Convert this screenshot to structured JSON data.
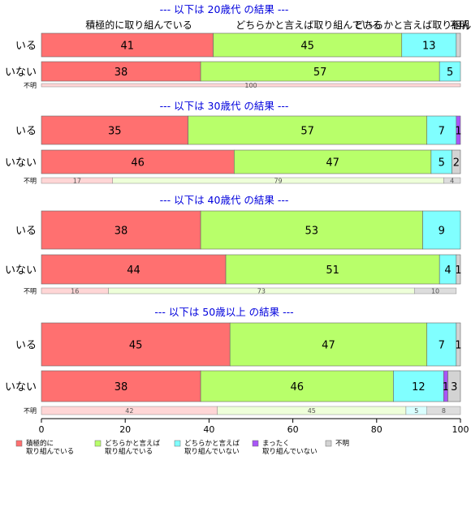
{
  "chart_data": {
    "type": "bar",
    "orientation": "horizontal",
    "stacked": true,
    "xlim": [
      0,
      100
    ],
    "x_ticks": [
      0,
      20,
      40,
      60,
      80,
      100
    ],
    "top_category_labels": [
      "積極的に取り組んでいる",
      "どちらかと言えば取り組んでいる",
      "どちらかと言えば取り組んでいない",
      "不明"
    ],
    "legend": {
      "placement": "bottom",
      "items": [
        {
          "label_lines": [
            "積極的に",
            "取り組んでいる"
          ],
          "color": "#ff7070"
        },
        {
          "label_lines": [
            "どちらかと言えば",
            "取り組んでいる"
          ],
          "color": "#b8ff6a"
        },
        {
          "label_lines": [
            "どちらかと言えば",
            "取り組んでいない"
          ],
          "color": "#80ffff"
        },
        {
          "label_lines": [
            "まったく",
            "取り組んでいない"
          ],
          "color": "#a855f7"
        },
        {
          "label_lines": [
            "不明"
          ],
          "color": "#d3d3d3"
        }
      ]
    },
    "groups": [
      {
        "title": "--- 以下は 20歳代 の結果 ---",
        "rows": [
          {
            "label": "いる",
            "values": [
              41,
              45,
              13,
              0,
              1
            ],
            "labels": [
              "41",
              "45",
              "13",
              "",
              ""
            ]
          },
          {
            "label": "いない",
            "values": [
              38,
              57,
              5,
              0,
              0
            ],
            "labels": [
              "38",
              "57",
              "5",
              "",
              ""
            ]
          }
        ],
        "unknown": {
          "label": "不明",
          "values": [
            100,
            0,
            0,
            0,
            0
          ],
          "labels": [
            "100",
            "",
            "",
            "",
            ""
          ]
        }
      },
      {
        "title": "--- 以下は 30歳代 の結果 ---",
        "rows": [
          {
            "label": "いる",
            "values": [
              35,
              57,
              7,
              1,
              0
            ],
            "labels": [
              "35",
              "57",
              "7",
              "1",
              ""
            ]
          },
          {
            "label": "いない",
            "values": [
              46,
              47,
              5,
              0,
              2
            ],
            "labels": [
              "46",
              "47",
              "5",
              "",
              "2"
            ]
          }
        ],
        "unknown": {
          "label": "不明",
          "values": [
            17,
            79,
            0,
            0,
            4
          ],
          "labels": [
            "17",
            "79",
            "",
            "",
            "4"
          ]
        }
      },
      {
        "title": "--- 以下は 40歳代 の結果 ---",
        "rows": [
          {
            "label": "いる",
            "values": [
              38,
              53,
              9,
              0,
              0
            ],
            "labels": [
              "38",
              "53",
              "9",
              "",
              ""
            ]
          },
          {
            "label": "いない",
            "values": [
              44,
              51,
              4,
              0,
              1
            ],
            "labels": [
              "44",
              "51",
              "4",
              "",
              "1"
            ]
          }
        ],
        "unknown": {
          "label": "不明",
          "values": [
            16,
            73,
            0,
            0,
            10
          ],
          "labels": [
            "16",
            "73",
            "",
            "",
            "10"
          ]
        }
      },
      {
        "title": "--- 以下は 50歳以上 の結果 ---",
        "rows": [
          {
            "label": "いる",
            "values": [
              45,
              47,
              7,
              0,
              1
            ],
            "labels": [
              "45",
              "47",
              "7",
              "",
              "1"
            ]
          },
          {
            "label": "いない",
            "values": [
              38,
              46,
              12,
              1,
              3
            ],
            "labels": [
              "38",
              "46",
              "12",
              "1",
              "3"
            ]
          }
        ],
        "unknown": {
          "label": "不明",
          "values": [
            42,
            45,
            5,
            0,
            8
          ],
          "labels": [
            "42",
            "45",
            "5",
            "",
            "8"
          ]
        }
      }
    ]
  }
}
